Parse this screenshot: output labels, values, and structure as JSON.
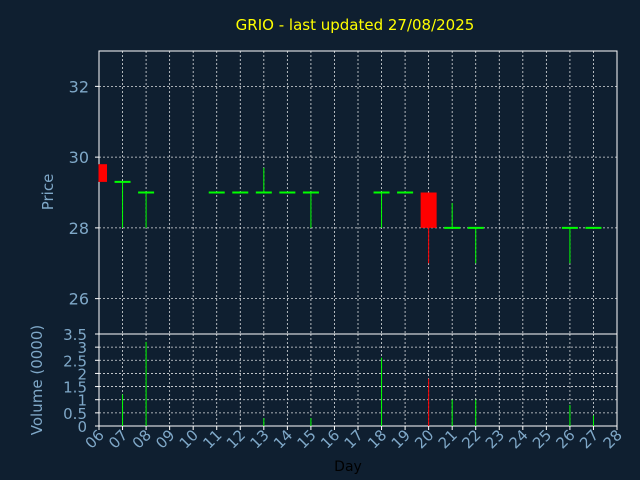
{
  "title": "GRIO - last updated 27/08/2025",
  "chart_data": {
    "type": "candlestick",
    "title": "GRIO - last updated 27/08/2025",
    "xlabel": "Day",
    "price_panel": {
      "ylabel": "Price",
      "ylim": [
        25,
        33
      ],
      "yticks": [
        26,
        28,
        30,
        32
      ]
    },
    "volume_panel": {
      "ylabel": "Volume (0000)",
      "ylim": [
        0,
        3.5
      ],
      "yticks": [
        0,
        0.5,
        1,
        1.5,
        2,
        2.5,
        3,
        3.5
      ],
      "ytick_labels": [
        "0",
        "0.5",
        "1",
        "1.5",
        "2",
        "2.5",
        "3",
        "3.5"
      ]
    },
    "x_ticks": [
      "06",
      "07",
      "08",
      "09",
      "10",
      "11",
      "12",
      "13",
      "14",
      "15",
      "16",
      "17",
      "18",
      "19",
      "20",
      "21",
      "22",
      "23",
      "24",
      "25",
      "26",
      "27",
      "28"
    ],
    "colors": {
      "up": "#00ff00",
      "down": "#ff0000",
      "title": "#ffff00",
      "axis_text": "#7fa8c8"
    },
    "candles": [
      {
        "day": 6,
        "open": 29.8,
        "high": 29.8,
        "low": 29.3,
        "close": 29.3,
        "volume": 0
      },
      {
        "day": 7,
        "open": 29.3,
        "high": 29.3,
        "low": 28.0,
        "close": 29.3,
        "volume": 1.2
      },
      {
        "day": 8,
        "open": 29.0,
        "high": 29.0,
        "low": 28.0,
        "close": 29.0,
        "volume": 3.2
      },
      {
        "day": 11,
        "open": 29.0,
        "high": 29.0,
        "low": 29.0,
        "close": 29.0,
        "volume": 0
      },
      {
        "day": 12,
        "open": 29.0,
        "high": 29.0,
        "low": 29.0,
        "close": 29.0,
        "volume": 0
      },
      {
        "day": 13,
        "open": 29.0,
        "high": 29.7,
        "low": 29.0,
        "close": 29.0,
        "volume": 0.3
      },
      {
        "day": 14,
        "open": 29.0,
        "high": 29.0,
        "low": 29.0,
        "close": 29.0,
        "volume": 0
      },
      {
        "day": 15,
        "open": 29.0,
        "high": 29.0,
        "low": 28.0,
        "close": 29.0,
        "volume": 0.3
      },
      {
        "day": 18,
        "open": 29.0,
        "high": 29.0,
        "low": 28.0,
        "close": 29.0,
        "volume": 2.6
      },
      {
        "day": 19,
        "open": 29.0,
        "high": 29.0,
        "low": 29.0,
        "close": 29.0,
        "volume": 0
      },
      {
        "day": 20,
        "open": 29.0,
        "high": 29.0,
        "low": 27.0,
        "close": 28.0,
        "volume": 1.8
      },
      {
        "day": 21,
        "open": 28.0,
        "high": 28.7,
        "low": 28.0,
        "close": 28.0,
        "volume": 1.0
      },
      {
        "day": 22,
        "open": 28.0,
        "high": 28.0,
        "low": 27.0,
        "close": 28.0,
        "volume": 1.0
      },
      {
        "day": 26,
        "open": 28.0,
        "high": 28.0,
        "low": 27.0,
        "close": 28.0,
        "volume": 0.8
      },
      {
        "day": 27,
        "open": 28.0,
        "high": 28.0,
        "low": 28.0,
        "close": 28.0,
        "volume": 0.4
      }
    ]
  }
}
